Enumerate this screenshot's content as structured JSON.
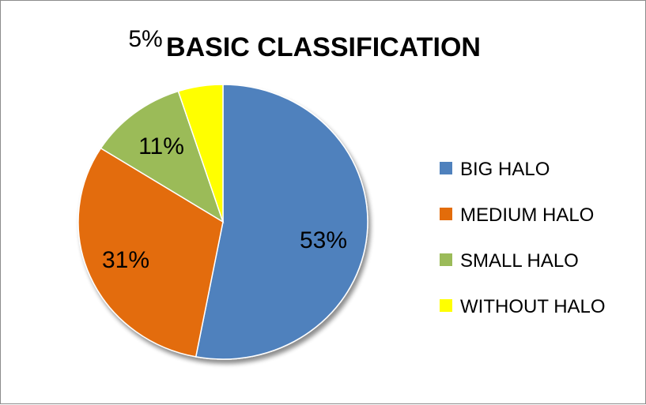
{
  "chart_data": {
    "type": "pie",
    "title": "BASIC CLASSIFICATION",
    "categories": [
      "BIG HALO",
      "MEDIUM HALO",
      "SMALL HALO",
      "WITHOUT HALO"
    ],
    "values": [
      53,
      31,
      11,
      5
    ],
    "labels": [
      "53%",
      "31%",
      "11%",
      "5%"
    ],
    "colors": [
      "#4F81BD",
      "#E36C0A",
      "#9BBB59",
      "#FFFF00"
    ],
    "legend_placement": "right"
  }
}
